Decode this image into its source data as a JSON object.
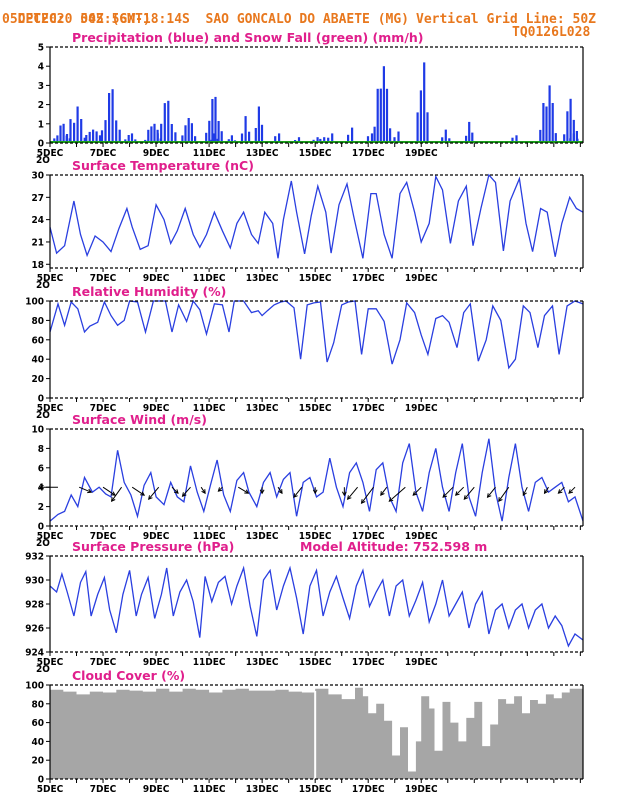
{
  "header": {
    "source": "CPTEC:",
    "coords": "045:56W-18:14S",
    "location": "SAO GONCALO DO ABAETE (MG)",
    "run": "05DEC2020 50Z (GMT)",
    "grid": "Vertical Grid Line: 50Z",
    "code": "TQ0126L028",
    "stub": "2O"
  },
  "colors": {
    "header": "#e8781e",
    "title": "#e01f8c",
    "line": "#2a3fe0",
    "precip": "#1f3ae6",
    "snow": "#1a9e1a",
    "cloud": "#a6a6a6"
  },
  "x_labels": [
    "5DEC",
    "7DEC",
    "9DEC",
    "11DEC",
    "13DEC",
    "15DEC",
    "17DEC",
    "19DEC"
  ],
  "chart_data": [
    {
      "type": "bar",
      "title": "Precipitation (blue) and Snow Fall (green) (mm/h)",
      "ylim": [
        0,
        5
      ],
      "yticks": [
        "0",
        "1",
        "2",
        "3",
        "4",
        "5"
      ],
      "series": [
        {
          "name": "Precipitation",
          "color": "blue",
          "events": [
            {
              "t": 0.12,
              "w": 0.7,
              "v": 1.0
            },
            {
              "t": 0.6,
              "w": 0.8,
              "v": 1.9
            },
            {
              "t": 1.2,
              "w": 0.9,
              "v": 0.7
            },
            {
              "t": 1.92,
              "w": 0.8,
              "v": 2.8
            },
            {
              "t": 2.8,
              "w": 0.5,
              "v": 0.5
            },
            {
              "t": 3.55,
              "w": 0.7,
              "v": 1.0
            },
            {
              "t": 4.02,
              "w": 0.8,
              "v": 2.2
            },
            {
              "t": 4.95,
              "w": 0.6,
              "v": 1.3
            },
            {
              "t": 6.05,
              "w": 0.35,
              "v": 0.5
            },
            {
              "t": 5.85,
              "w": 0.7,
              "v": 2.4
            },
            {
              "t": 6.7,
              "w": 0.35,
              "v": 0.4
            },
            {
              "t": 7.2,
              "w": 0.4,
              "v": 1.4
            },
            {
              "t": 7.72,
              "w": 0.35,
              "v": 1.9
            },
            {
              "t": 8.45,
              "w": 0.3,
              "v": 0.5
            },
            {
              "t": 9.2,
              "w": 0.3,
              "v": 0.3
            },
            {
              "t": 9.9,
              "w": 0.3,
              "v": 0.3
            },
            {
              "t": 10.15,
              "w": 0.3,
              "v": 0.3
            },
            {
              "t": 10.45,
              "w": 0.3,
              "v": 0.5
            },
            {
              "t": 11.2,
              "w": 0.3,
              "v": 0.8
            },
            {
              "t": 11.95,
              "w": 0.3,
              "v": 0.5
            },
            {
              "t": 12.2,
              "w": 0.7,
              "v": 4.0
            },
            {
              "t": 12.95,
              "w": 0.3,
              "v": 0.6
            },
            {
              "t": 13.82,
              "w": 0.5,
              "v": 4.2
            },
            {
              "t": 14.75,
              "w": 0.4,
              "v": 0.7
            },
            {
              "t": 15.65,
              "w": 0.35,
              "v": 1.1
            },
            {
              "t": 17.4,
              "w": 0.3,
              "v": 0.4
            },
            {
              "t": 18.45,
              "w": 0.7,
              "v": 3.0
            },
            {
              "t": 19.35,
              "w": 0.6,
              "v": 2.3
            },
            {
              "t": 19.58,
              "w": 0.4,
              "v": 0.5
            }
          ]
        },
        {
          "name": "Snow Fall",
          "color": "green",
          "values_constant": 0
        }
      ]
    },
    {
      "type": "line",
      "title": "Surface Temperature (nC)",
      "ylim": [
        17.5,
        30
      ],
      "yticks": [
        "18",
        "21",
        "24",
        "27",
        "30"
      ],
      "x": [
        0,
        0.25,
        0.55,
        0.9,
        1.15,
        1.4,
        1.7,
        2.0,
        2.3,
        2.6,
        2.9,
        3.1,
        3.4,
        3.7,
        4.0,
        4.3,
        4.55,
        4.8,
        5.1,
        5.4,
        5.65,
        5.9,
        6.2,
        6.5,
        6.8,
        7.05,
        7.3,
        7.6,
        7.85,
        8.1,
        8.4,
        8.6,
        8.8,
        9.1,
        9.3,
        9.6,
        9.85,
        10.1,
        10.4,
        10.6,
        10.9,
        11.2,
        11.45,
        11.8,
        12.1,
        12.3,
        12.6,
        12.9,
        13.2,
        13.45,
        13.75,
        14.0,
        14.3,
        14.55,
        14.8,
        15.1,
        15.4,
        15.7,
        15.95,
        16.25,
        16.55,
        16.8,
        17.1,
        17.35,
        17.7,
        17.95,
        18.2,
        18.5,
        18.75,
        19.05,
        19.3,
        19.6,
        19.85,
        20.1
      ],
      "values": [
        23.0,
        19.5,
        20.5,
        26.5,
        22.0,
        19.2,
        21.8,
        21.0,
        19.7,
        22.8,
        25.5,
        23.0,
        20.0,
        20.5,
        26.0,
        24.0,
        20.8,
        22.5,
        25.5,
        22.0,
        20.3,
        22.0,
        25.0,
        22.5,
        20.2,
        23.5,
        25.0,
        22.0,
        20.8,
        25.0,
        23.5,
        18.8,
        24.0,
        29.2,
        25.0,
        19.4,
        24.5,
        28.5,
        25.0,
        19.5,
        26.0,
        28.8,
        24.5,
        18.8,
        27.5,
        27.5,
        22.0,
        18.8,
        27.5,
        29.0,
        25.0,
        21.0,
        23.5,
        29.8,
        28.0,
        20.8,
        26.5,
        28.5,
        20.5,
        25.5,
        30.0,
        29.0,
        19.8,
        26.5,
        29.5,
        23.5,
        19.7,
        25.5,
        25.0,
        19.0,
        23.5,
        27.0,
        25.5,
        25.0
      ]
    },
    {
      "type": "line",
      "title": "Relative Humidity (%)",
      "ylim": [
        0,
        100
      ],
      "yticks": [
        "0",
        "20",
        "40",
        "60",
        "80",
        "100"
      ],
      "x": [
        0,
        0.3,
        0.55,
        0.8,
        1.05,
        1.3,
        1.5,
        1.8,
        2.05,
        2.3,
        2.55,
        2.8,
        3.0,
        3.3,
        3.6,
        3.9,
        4.1,
        4.35,
        4.6,
        4.85,
        5.15,
        5.4,
        5.65,
        5.9,
        6.2,
        6.5,
        6.75,
        6.95,
        7.3,
        7.6,
        7.85,
        8.0,
        8.2,
        8.45,
        8.7,
        8.9,
        9.2,
        9.45,
        9.7,
        9.95,
        10.2,
        10.45,
        10.7,
        11.0,
        11.25,
        11.5,
        11.75,
        12.0,
        12.3,
        12.6,
        12.9,
        13.2,
        13.45,
        13.75,
        14.0,
        14.25,
        14.55,
        14.8,
        15.05,
        15.35,
        15.6,
        15.85,
        16.15,
        16.45,
        16.7,
        17.0,
        17.3,
        17.55,
        17.85,
        18.1,
        18.4,
        18.65,
        18.95,
        19.2,
        19.5,
        19.8,
        20.1
      ],
      "values": [
        68,
        97,
        75,
        99,
        92,
        68,
        74,
        78,
        99,
        85,
        75,
        80,
        100,
        99,
        68,
        100,
        100,
        100,
        68,
        96,
        79,
        100,
        91,
        66,
        97,
        96,
        68,
        100,
        100,
        88,
        90,
        85,
        90,
        96,
        99,
        100,
        93,
        40,
        96,
        98,
        99,
        37,
        57,
        96,
        99,
        100,
        45,
        92,
        92,
        79,
        35,
        60,
        98,
        88,
        65,
        45,
        82,
        85,
        78,
        52,
        88,
        97,
        38,
        60,
        95,
        80,
        31,
        40,
        95,
        88,
        52,
        85,
        95,
        45,
        95,
        100,
        97
      ]
    },
    {
      "type": "line",
      "title": "Surface Wind (m/s)",
      "ylim": [
        0,
        10
      ],
      "yticks": [
        "0",
        "2",
        "4",
        "6",
        "8",
        "10"
      ],
      "x": [
        0,
        0.3,
        0.55,
        0.8,
        1.05,
        1.3,
        1.6,
        1.85,
        2.1,
        2.3,
        2.55,
        2.8,
        3.05,
        3.3,
        3.55,
        3.8,
        4.0,
        4.3,
        4.55,
        4.8,
        5.05,
        5.3,
        5.55,
        5.8,
        6.05,
        6.3,
        6.55,
        6.8,
        7.05,
        7.3,
        7.5,
        7.8,
        8.05,
        8.3,
        8.55,
        8.8,
        9.05,
        9.3,
        9.55,
        9.8,
        10.05,
        10.3,
        10.55,
        10.8,
        11.05,
        11.3,
        11.55,
        11.8,
        12.05,
        12.3,
        12.55,
        12.8,
        13.05,
        13.3,
        13.55,
        13.8,
        14.05,
        14.3,
        14.55,
        14.8,
        15.05,
        15.3,
        15.55,
        15.8,
        16.05,
        16.3,
        16.55,
        16.8,
        17.05,
        17.3,
        17.55,
        17.8,
        18.05,
        18.3,
        18.55,
        18.8,
        19.05,
        19.3,
        19.55,
        19.8,
        20.1
      ],
      "values": [
        0.5,
        1.2,
        1.5,
        3.2,
        2.0,
        5.0,
        3.5,
        4.0,
        3.3,
        3.0,
        7.8,
        4.5,
        3.2,
        1.0,
        4.2,
        5.5,
        3.0,
        2.2,
        4.5,
        3.0,
        2.5,
        6.2,
        3.5,
        1.5,
        4.2,
        6.8,
        3.2,
        1.5,
        4.7,
        5.5,
        3.5,
        2.0,
        4.5,
        5.5,
        3.0,
        4.8,
        5.5,
        1.0,
        4.5,
        5.0,
        3.0,
        3.5,
        7.0,
        4.0,
        2.0,
        5.5,
        6.5,
        4.5,
        1.5,
        5.8,
        6.5,
        3.0,
        1.5,
        6.5,
        8.5,
        3.5,
        1.5,
        5.5,
        8.0,
        4.0,
        1.5,
        5.5,
        8.5,
        3.0,
        1.0,
        5.5,
        9.0,
        3.5,
        0.5,
        5.0,
        8.5,
        4.0,
        1.5,
        4.5,
        5.0,
        3.5,
        4.0,
        4.5,
        2.5,
        3.0,
        0.5
      ]
    },
    {
      "type": "line",
      "title": "Surface Pressure (hPa)",
      "annotation": "Model Altitude: 752.598 m",
      "ylim": [
        924,
        932
      ],
      "yticks": [
        "924",
        "926",
        "928",
        "930",
        "932"
      ],
      "x": [
        0,
        0.25,
        0.45,
        0.65,
        0.9,
        1.15,
        1.35,
        1.55,
        1.8,
        2.05,
        2.25,
        2.5,
        2.75,
        3.0,
        3.25,
        3.45,
        3.7,
        3.95,
        4.2,
        4.4,
        4.65,
        4.9,
        5.15,
        5.4,
        5.65,
        5.85,
        6.1,
        6.35,
        6.6,
        6.85,
        7.05,
        7.3,
        7.55,
        7.8,
        8.05,
        8.3,
        8.55,
        8.8,
        9.05,
        9.3,
        9.55,
        9.8,
        10.05,
        10.3,
        10.55,
        10.8,
        11.05,
        11.3,
        11.55,
        11.8,
        12.05,
        12.3,
        12.55,
        12.8,
        13.05,
        13.3,
        13.55,
        13.8,
        14.05,
        14.3,
        14.55,
        14.8,
        15.05,
        15.3,
        15.55,
        15.8,
        16.05,
        16.3,
        16.55,
        16.8,
        17.05,
        17.3,
        17.55,
        17.8,
        18.05,
        18.3,
        18.55,
        18.8,
        19.05,
        19.3,
        19.55,
        19.8,
        20.1
      ],
      "values": [
        929.5,
        929.0,
        930.5,
        929.0,
        927.0,
        929.8,
        930.7,
        927.0,
        928.8,
        930.2,
        927.5,
        925.6,
        928.8,
        930.8,
        927.0,
        928.8,
        930.2,
        926.8,
        928.8,
        931.0,
        927.0,
        929.0,
        930.0,
        928.2,
        925.2,
        930.3,
        928.2,
        929.8,
        930.3,
        928.0,
        929.5,
        931.0,
        927.8,
        925.3,
        930.0,
        930.8,
        927.5,
        929.5,
        931.0,
        928.5,
        925.5,
        929.5,
        930.8,
        927.0,
        929.0,
        930.3,
        928.5,
        926.8,
        929.5,
        930.8,
        927.8,
        929.0,
        930.0,
        927.0,
        929.5,
        930.0,
        927.0,
        928.3,
        929.8,
        926.5,
        928.0,
        930.0,
        927.0,
        928.0,
        929.0,
        926.0,
        928.0,
        929.0,
        925.5,
        927.5,
        928.0,
        926.0,
        927.5,
        928.0,
        926.0,
        927.5,
        928.0,
        926.0,
        927.0,
        926.2,
        924.5,
        925.5,
        925.0
      ]
    },
    {
      "type": "area",
      "title": "Cloud Cover (%)",
      "ylim": [
        0,
        100
      ],
      "yticks": [
        "0",
        "20",
        "40",
        "60",
        "80",
        "100"
      ],
      "x": [
        0,
        0.5,
        1.0,
        1.5,
        2.0,
        2.5,
        3.0,
        3.5,
        4.0,
        4.5,
        5.0,
        5.5,
        6.0,
        6.5,
        7.0,
        7.5,
        8.0,
        8.5,
        9.0,
        9.5,
        10.0,
        10.5,
        11.0,
        11.5,
        11.8,
        12.0,
        12.3,
        12.6,
        12.9,
        13.2,
        13.5,
        13.8,
        14.0,
        14.3,
        14.5,
        14.8,
        15.1,
        15.4,
        15.7,
        16.0,
        16.3,
        16.6,
        16.9,
        17.2,
        17.5,
        17.8,
        18.1,
        18.4,
        18.7,
        19.0,
        19.3,
        19.6,
        20.1
      ],
      "values": [
        95,
        93,
        90,
        93,
        92,
        95,
        94,
        93,
        96,
        93,
        96,
        95,
        92,
        95,
        96,
        94,
        94,
        95,
        93,
        92,
        96,
        90,
        85,
        97,
        88,
        70,
        80,
        62,
        25,
        55,
        8,
        40,
        88,
        75,
        30,
        82,
        60,
        40,
        65,
        82,
        35,
        58,
        85,
        80,
        88,
        70,
        84,
        80,
        90,
        86,
        92,
        96,
        96
      ]
    }
  ]
}
